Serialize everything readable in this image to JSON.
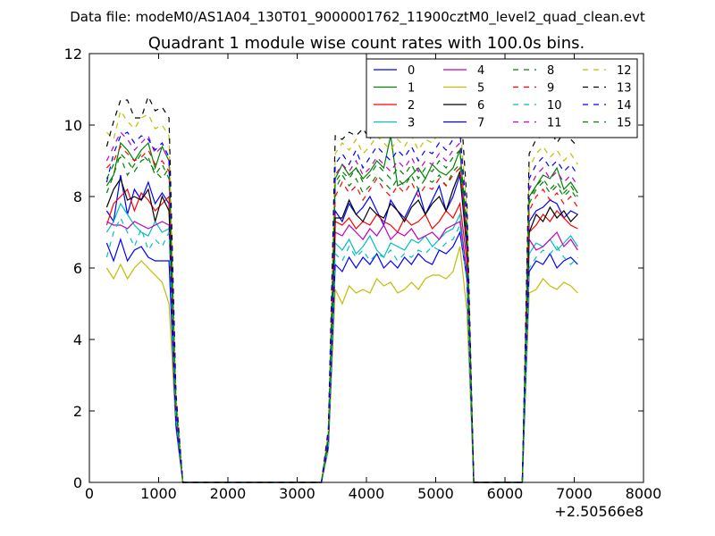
{
  "figure": {
    "suptitle": "Data file: modeM0/AS1A04_130T01_9000001762_11900cztM0_level2_quad_clean.evt",
    "offset_label": "+2.50566e8"
  },
  "chart_data": {
    "type": "line",
    "title": "Quadrant 1 module wise count rates with 100.0s bins.",
    "xlabel": "",
    "ylabel": "",
    "xlim": [
      0,
      8000
    ],
    "ylim": [
      0,
      12
    ],
    "xticks": [
      0,
      1000,
      2000,
      3000,
      4000,
      5000,
      6000,
      7000,
      8000
    ],
    "yticks": [
      0,
      2,
      4,
      6,
      8,
      10,
      12
    ],
    "x_offset": 250566000,
    "legend": {
      "placement": "top-right",
      "columns": 4
    },
    "x": [
      250,
      350,
      450,
      550,
      650,
      750,
      850,
      950,
      1050,
      1150,
      1250,
      1350,
      1450,
      1550,
      1650,
      1750,
      1850,
      1950,
      2050,
      2150,
      2250,
      2350,
      2450,
      2550,
      2650,
      2750,
      2850,
      2950,
      3050,
      3150,
      3250,
      3350,
      3450,
      3550,
      3650,
      3750,
      3850,
      3950,
      4050,
      4150,
      4250,
      4350,
      4450,
      4550,
      4650,
      4750,
      4850,
      4950,
      5050,
      5150,
      5250,
      5350,
      5450,
      5550,
      5650,
      5750,
      5850,
      5950,
      6050,
      6150,
      6250,
      6350,
      6450,
      6550,
      6650,
      6750,
      6850,
      6950,
      7050
    ],
    "series": [
      {
        "name": "0",
        "color": "#0000ff",
        "dash": "solid",
        "values": [
          7.6,
          7.3,
          8.6,
          7.5,
          8.2,
          7.9,
          8.4,
          7.8,
          8.1,
          7.8,
          2.1,
          0,
          0,
          0,
          0,
          0,
          0,
          0,
          0,
          0,
          0,
          0,
          0,
          0,
          0,
          0,
          0,
          0,
          0,
          0,
          0,
          0,
          1.2,
          7.6,
          7.3,
          7.8,
          7.5,
          7.7,
          8.0,
          7.6,
          7.2,
          7.9,
          7.6,
          7.4,
          7.8,
          8.2,
          7.5,
          7.9,
          8.3,
          7.6,
          8.0,
          8.6,
          6.5,
          0,
          0,
          0,
          0,
          0,
          0,
          0,
          0,
          7.3,
          7.6,
          7.7,
          7.9,
          7.8,
          7.4,
          7.6,
          7.5
        ]
      },
      {
        "name": "1",
        "color": "#008000",
        "dash": "solid",
        "values": [
          8.3,
          8.6,
          9.5,
          9.3,
          9.0,
          9.3,
          9.5,
          8.8,
          9.4,
          9.0,
          2.2,
          0,
          0,
          0,
          0,
          0,
          0,
          0,
          0,
          0,
          0,
          0,
          0,
          0,
          0,
          0,
          0,
          0,
          0,
          0,
          0,
          0,
          1.3,
          8.5,
          8.9,
          8.6,
          8.8,
          8.5,
          8.7,
          9.0,
          8.8,
          9.7,
          8.3,
          8.4,
          8.6,
          8.8,
          8.5,
          8.9,
          8.7,
          8.6,
          8.8,
          9.3,
          6.9,
          0,
          0,
          0,
          0,
          0,
          0,
          0,
          0,
          8.0,
          8.3,
          8.6,
          8.5,
          8.8,
          8.2,
          8.4,
          8.1
        ]
      },
      {
        "name": "2",
        "color": "#ff0000",
        "dash": "solid",
        "values": [
          7.2,
          7.8,
          8.0,
          8.2,
          7.6,
          8.1,
          7.9,
          7.6,
          7.8,
          8.0,
          2.0,
          0,
          0,
          0,
          0,
          0,
          0,
          0,
          0,
          0,
          0,
          0,
          0,
          0,
          0,
          0,
          0,
          0,
          0,
          0,
          0,
          0,
          1.2,
          7.3,
          7.2,
          7.4,
          7.1,
          7.3,
          7.2,
          7.5,
          7.3,
          7.2,
          7.0,
          7.4,
          7.2,
          7.3,
          7.5,
          7.1,
          7.3,
          7.6,
          7.4,
          7.8,
          6.2,
          0,
          0,
          0,
          0,
          0,
          0,
          0,
          0,
          7.0,
          7.2,
          7.5,
          7.3,
          7.6,
          7.4,
          7.2,
          7.1
        ]
      },
      {
        "name": "3",
        "color": "#00bfbf",
        "dash": "solid",
        "values": [
          7.0,
          7.3,
          7.8,
          7.5,
          7.2,
          7.0,
          6.9,
          7.3,
          7.0,
          7.1,
          1.9,
          0,
          0,
          0,
          0,
          0,
          0,
          0,
          0,
          0,
          0,
          0,
          0,
          0,
          0,
          0,
          0,
          0,
          0,
          0,
          0,
          0,
          1.1,
          6.7,
          6.5,
          6.8,
          6.4,
          6.6,
          6.9,
          6.5,
          6.3,
          6.7,
          6.6,
          6.5,
          6.8,
          6.7,
          6.9,
          6.6,
          6.8,
          7.0,
          7.1,
          7.5,
          5.8,
          0,
          0,
          0,
          0,
          0,
          0,
          0,
          0,
          6.4,
          6.7,
          6.6,
          6.8,
          6.5,
          6.7,
          6.9,
          6.6
        ]
      },
      {
        "name": "4",
        "color": "#bf00bf",
        "dash": "solid",
        "values": [
          7.3,
          7.2,
          7.2,
          7.1,
          7.3,
          7.2,
          7.1,
          7.2,
          7.3,
          7.2,
          1.9,
          0,
          0,
          0,
          0,
          0,
          0,
          0,
          0,
          0,
          0,
          0,
          0,
          0,
          0,
          0,
          0,
          0,
          0,
          0,
          0,
          0,
          1.1,
          7.0,
          6.9,
          7.2,
          7.0,
          6.8,
          7.1,
          6.9,
          7.2,
          6.8,
          7.0,
          6.9,
          7.1,
          6.8,
          6.9,
          7.0,
          6.8,
          7.1,
          7.2,
          7.3,
          5.9,
          0,
          0,
          0,
          0,
          0,
          0,
          0,
          0,
          6.8,
          6.5,
          6.6,
          6.8,
          7.0,
          6.6,
          6.8,
          6.5
        ]
      },
      {
        "name": "5",
        "color": "#bfbf00",
        "dash": "solid",
        "values": [
          6.0,
          5.7,
          6.1,
          5.7,
          6.0,
          6.2,
          6.0,
          5.8,
          5.6,
          5.0,
          1.5,
          0,
          0,
          0,
          0,
          0,
          0,
          0,
          0,
          0,
          0,
          0,
          0,
          0,
          0,
          0,
          0,
          0,
          0,
          0,
          0,
          0,
          0.9,
          5.4,
          5.0,
          5.5,
          5.3,
          5.4,
          5.3,
          5.7,
          5.5,
          5.6,
          5.3,
          5.4,
          5.6,
          5.4,
          5.7,
          5.8,
          5.8,
          5.7,
          5.9,
          6.6,
          4.8,
          0,
          0,
          0,
          0,
          0,
          0,
          0,
          0,
          5.3,
          5.4,
          5.7,
          5.5,
          5.4,
          5.6,
          5.5,
          5.3
        ]
      },
      {
        "name": "6",
        "color": "#000000",
        "dash": "solid",
        "values": [
          7.7,
          8.2,
          8.5,
          7.9,
          8.0,
          7.9,
          8.2,
          7.3,
          8.0,
          7.6,
          2.1,
          0,
          0,
          0,
          0,
          0,
          0,
          0,
          0,
          0,
          0,
          0,
          0,
          0,
          0,
          0,
          0,
          0,
          0,
          0,
          0,
          0,
          1.2,
          7.4,
          7.4,
          7.9,
          7.5,
          7.3,
          7.7,
          7.5,
          7.4,
          7.8,
          7.6,
          7.3,
          7.7,
          7.9,
          7.5,
          7.8,
          8.0,
          7.6,
          8.2,
          8.7,
          6.7,
          0,
          0,
          0,
          0,
          0,
          0,
          0,
          0,
          7.0,
          7.5,
          7.3,
          7.7,
          7.4,
          7.6,
          7.3,
          7.5
        ]
      },
      {
        "name": "7",
        "color": "#0000ff",
        "dash": "solid",
        "values": [
          6.7,
          6.2,
          6.8,
          6.2,
          6.5,
          6.6,
          6.3,
          6.2,
          6.2,
          6.2,
          1.6,
          0,
          0,
          0,
          0,
          0,
          0,
          0,
          0,
          0,
          0,
          0,
          0,
          0,
          0,
          0,
          0,
          0,
          0,
          0,
          0,
          0,
          1.0,
          6.1,
          5.9,
          6.3,
          6.0,
          6.3,
          6.1,
          6.4,
          6.0,
          6.2,
          6.0,
          6.3,
          6.1,
          6.4,
          6.2,
          6.1,
          6.5,
          6.4,
          6.6,
          7.0,
          5.7,
          0,
          0,
          0,
          0,
          0,
          0,
          0,
          0,
          5.9,
          6.2,
          6.1,
          6.4,
          6.0,
          6.2,
          6.3,
          6.1
        ]
      },
      {
        "name": "8",
        "color": "#008000",
        "dash": "dashed",
        "values": [
          8.5,
          8.9,
          9.1,
          8.6,
          8.9,
          9.2,
          9.0,
          8.7,
          8.5,
          8.8,
          2.2,
          0,
          0,
          0,
          0,
          0,
          0,
          0,
          0,
          0,
          0,
          0,
          0,
          0,
          0,
          0,
          0,
          0,
          0,
          0,
          0,
          0,
          1.3,
          8.2,
          8.6,
          8.3,
          8.5,
          8.1,
          8.3,
          8.6,
          8.4,
          8.2,
          8.5,
          8.3,
          8.6,
          8.2,
          8.5,
          8.4,
          8.6,
          8.3,
          8.7,
          8.9,
          6.9,
          0,
          0,
          0,
          0,
          0,
          0,
          0,
          0,
          7.8,
          8.2,
          8.4,
          8.1,
          8.3,
          8.0,
          8.2,
          7.9
        ]
      },
      {
        "name": "9",
        "color": "#ff0000",
        "dash": "dashed",
        "values": [
          8.8,
          9.0,
          9.4,
          9.2,
          9.0,
          9.1,
          9.3,
          8.9,
          9.0,
          8.7,
          2.2,
          0,
          0,
          0,
          0,
          0,
          0,
          0,
          0,
          0,
          0,
          0,
          0,
          0,
          0,
          0,
          0,
          0,
          0,
          0,
          0,
          0,
          1.3,
          8.0,
          8.4,
          8.1,
          8.3,
          7.9,
          8.2,
          8.5,
          8.2,
          8.0,
          8.3,
          8.1,
          8.4,
          8.0,
          8.3,
          8.2,
          8.5,
          8.3,
          8.6,
          8.8,
          6.8,
          0,
          0,
          0,
          0,
          0,
          0,
          0,
          0,
          7.6,
          8.0,
          8.2,
          7.9,
          8.1,
          7.8,
          8.0,
          7.7
        ]
      },
      {
        "name": "10",
        "color": "#00bfbf",
        "dash": "dashed",
        "values": [
          6.3,
          7.0,
          7.4,
          7.0,
          6.6,
          7.1,
          6.5,
          6.8,
          6.6,
          7.0,
          1.8,
          0,
          0,
          0,
          0,
          0,
          0,
          0,
          0,
          0,
          0,
          0,
          0,
          0,
          0,
          0,
          0,
          0,
          0,
          0,
          0,
          0,
          1.0,
          6.4,
          6.2,
          6.6,
          6.3,
          6.5,
          6.2,
          6.4,
          6.3,
          6.5,
          6.2,
          6.4,
          6.3,
          6.5,
          6.4,
          6.6,
          6.5,
          6.7,
          6.8,
          7.2,
          5.6,
          0,
          0,
          0,
          0,
          0,
          0,
          0,
          0,
          6.0,
          6.3,
          6.5,
          6.4,
          6.6,
          6.3,
          6.1,
          6.3
        ]
      },
      {
        "name": "11",
        "color": "#bf00bf",
        "dash": "dashed",
        "values": [
          9.0,
          9.4,
          9.8,
          9.6,
          9.3,
          9.5,
          9.7,
          9.2,
          9.4,
          9.0,
          2.3,
          0,
          0,
          0,
          0,
          0,
          0,
          0,
          0,
          0,
          0,
          0,
          0,
          0,
          0,
          0,
          0,
          0,
          0,
          0,
          0,
          0,
          1.3,
          8.6,
          8.9,
          8.7,
          9.0,
          8.6,
          8.8,
          9.1,
          8.9,
          8.7,
          9.0,
          8.8,
          9.1,
          8.7,
          9.0,
          8.9,
          9.2,
          9.0,
          9.3,
          9.5,
          7.2,
          0,
          0,
          0,
          0,
          0,
          0,
          0,
          0,
          8.2,
          8.6,
          8.8,
          8.5,
          8.7,
          8.4,
          8.6,
          8.3
        ]
      },
      {
        "name": "12",
        "color": "#bfbf00",
        "dash": "dashed",
        "values": [
          9.8,
          9.6,
          10.4,
          10.1,
          9.9,
          10.2,
          10.3,
          9.9,
          10.0,
          9.7,
          2.4,
          0,
          0,
          0,
          0,
          0,
          0,
          0,
          0,
          0,
          0,
          0,
          0,
          0,
          0,
          0,
          0,
          0,
          0,
          0,
          0,
          0,
          1.4,
          9.2,
          9.5,
          9.3,
          9.6,
          9.2,
          9.4,
          9.7,
          9.5,
          9.3,
          9.6,
          9.4,
          9.7,
          9.3,
          9.6,
          9.5,
          9.8,
          9.6,
          9.9,
          10.1,
          7.6,
          0,
          0,
          0,
          0,
          0,
          0,
          0,
          0,
          8.8,
          9.2,
          9.4,
          9.1,
          9.3,
          9.0,
          9.2,
          8.9
        ]
      },
      {
        "name": "13",
        "color": "#000000",
        "dash": "dashed",
        "values": [
          9.4,
          10.1,
          10.7,
          10.7,
          10.2,
          10.2,
          10.8,
          10.4,
          10.5,
          10.2,
          2.5,
          0,
          0,
          0,
          0,
          0,
          0,
          0,
          0,
          0,
          0,
          0,
          0,
          0,
          0,
          0,
          0,
          0,
          0,
          0,
          0,
          0,
          1.5,
          9.7,
          9.6,
          9.8,
          9.7,
          9.9,
          9.6,
          10.0,
          9.8,
          9.7,
          10.1,
          9.8,
          10.0,
          9.7,
          10.1,
          9.9,
          10.2,
          10.0,
          10.3,
          10.9,
          7.9,
          0,
          0,
          0,
          0,
          0,
          0,
          0,
          0,
          9.2,
          9.6,
          9.7,
          9.9,
          9.5,
          9.8,
          9.6,
          9.4
        ]
      },
      {
        "name": "14",
        "color": "#0000ff",
        "dash": "dashed",
        "values": [
          8.4,
          9.2,
          9.7,
          9.8,
          9.5,
          9.7,
          9.6,
          9.3,
          9.5,
          9.1,
          2.3,
          0,
          0,
          0,
          0,
          0,
          0,
          0,
          0,
          0,
          0,
          0,
          0,
          0,
          0,
          0,
          0,
          0,
          0,
          0,
          0,
          0,
          1.4,
          8.9,
          9.2,
          8.9,
          9.3,
          8.8,
          9.1,
          9.4,
          9.2,
          9.0,
          9.3,
          9.1,
          9.4,
          9.0,
          9.3,
          9.2,
          9.5,
          9.3,
          9.6,
          9.8,
          7.4,
          0,
          0,
          0,
          0,
          0,
          0,
          0,
          0,
          8.5,
          8.9,
          9.1,
          8.8,
          9.0,
          8.7,
          8.9,
          8.6
        ]
      },
      {
        "name": "15",
        "color": "#008000",
        "dash": "dashed",
        "values": [
          8.1,
          8.6,
          9.2,
          9.0,
          8.7,
          9.0,
          9.1,
          8.6,
          8.9,
          8.5,
          2.2,
          0,
          0,
          0,
          0,
          0,
          0,
          0,
          0,
          0,
          0,
          0,
          0,
          0,
          0,
          0,
          0,
          0,
          0,
          0,
          0,
          0,
          1.3,
          8.4,
          8.7,
          8.5,
          8.8,
          8.4,
          8.6,
          8.9,
          8.7,
          8.5,
          8.8,
          8.6,
          8.9,
          8.5,
          8.8,
          8.7,
          9.0,
          8.8,
          9.1,
          9.3,
          7.1,
          0,
          0,
          0,
          0,
          0,
          0,
          0,
          0,
          7.9,
          8.3,
          8.5,
          8.2,
          8.4,
          8.1,
          8.3,
          8.0
        ]
      }
    ]
  }
}
